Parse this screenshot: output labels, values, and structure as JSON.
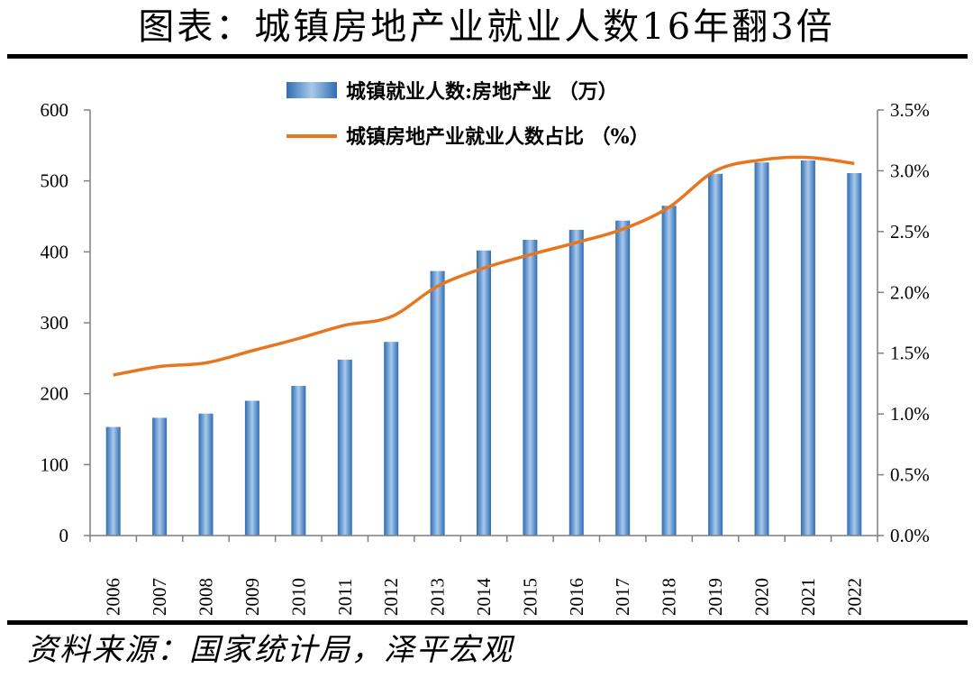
{
  "title": "图表：城镇房地产业就业人数16年翻3倍",
  "source": "资料来源：国家统计局，泽平宏观",
  "colors": {
    "bar": "#3a78bd",
    "bar_light": "#9cc1e8",
    "line": "#e8761e",
    "axis": "#7f7f7f"
  },
  "chart_data": {
    "type": "bar",
    "categories": [
      "2006",
      "2007",
      "2008",
      "2009",
      "2010",
      "2011",
      "2012",
      "2013",
      "2014",
      "2015",
      "2016",
      "2017",
      "2018",
      "2019",
      "2020",
      "2021",
      "2022"
    ],
    "series": [
      {
        "name": "城镇就业人数:房地产业 （万）",
        "type": "bar",
        "axis": "left",
        "values": [
          153,
          166,
          172,
          190,
          211,
          248,
          273,
          373,
          402,
          417,
          431,
          444,
          465,
          510,
          526,
          529,
          511
        ]
      },
      {
        "name": "城镇房地产业就业人数占比 （%）",
        "type": "line",
        "axis": "right",
        "values": [
          1.32,
          1.39,
          1.42,
          1.52,
          1.62,
          1.73,
          1.8,
          2.05,
          2.2,
          2.31,
          2.41,
          2.52,
          2.7,
          3.0,
          3.09,
          3.11,
          3.06
        ]
      }
    ],
    "y_left": {
      "min": 0,
      "max": 600,
      "ticks": [
        "0",
        "100",
        "200",
        "300",
        "400",
        "500",
        "600"
      ]
    },
    "y_right": {
      "min": 0,
      "max": 3.5,
      "ticks": [
        "0.0%",
        "0.5%",
        "1.0%",
        "1.5%",
        "2.0%",
        "2.5%",
        "3.0%",
        "3.5%"
      ]
    },
    "legend_position": "top-center",
    "grid": false
  }
}
